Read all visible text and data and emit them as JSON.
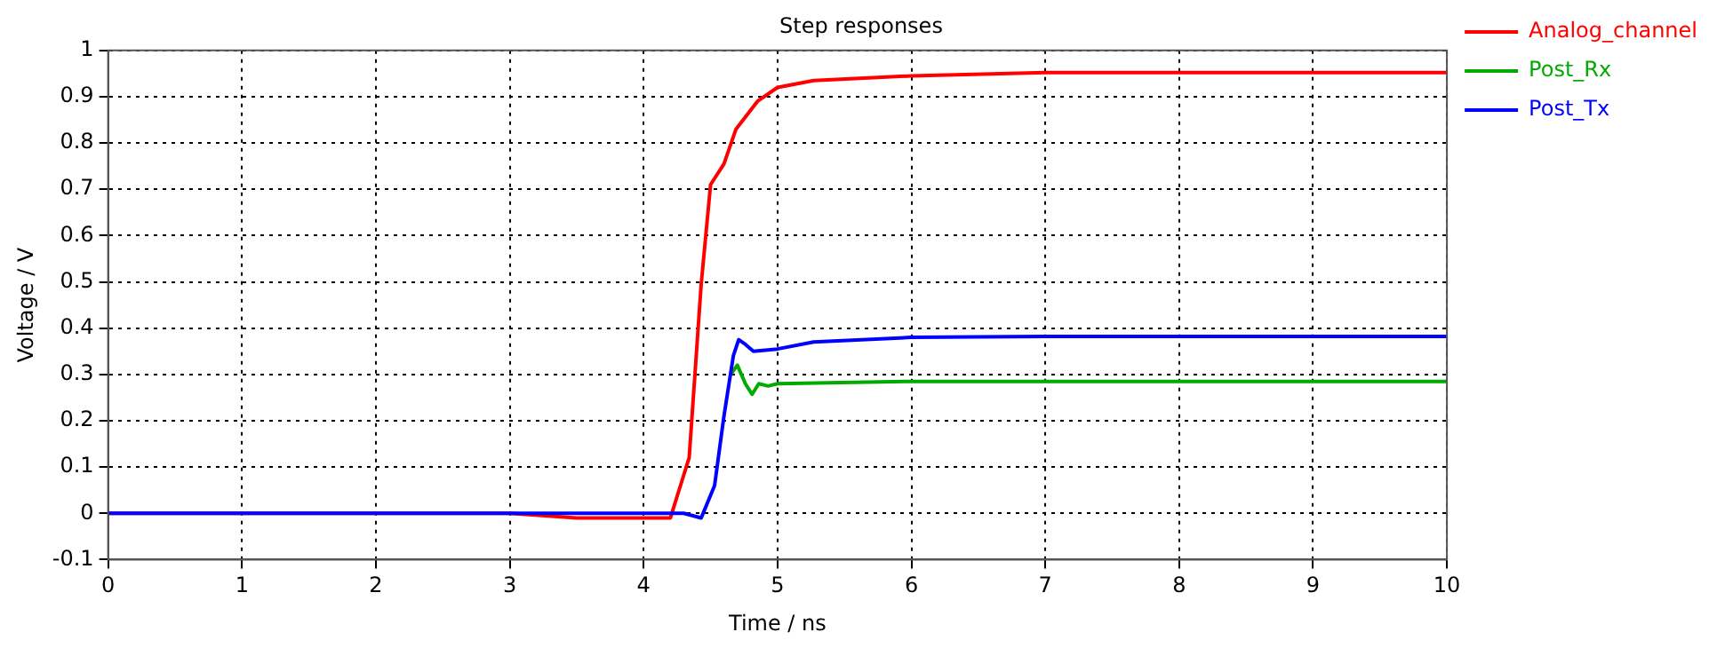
{
  "chart_data": {
    "type": "line",
    "title": "Step responses",
    "xlabel": "Time / ns",
    "ylabel": "Voltage / V",
    "xlim": [
      0,
      10
    ],
    "xticks": [
      0,
      1,
      2,
      3,
      4,
      5,
      6,
      7,
      8,
      9,
      10
    ],
    "ylim": [
      -0.1,
      1
    ],
    "yticks": [
      -0.1,
      0,
      0.1,
      0.2,
      0.3,
      0.4,
      0.5,
      0.6,
      0.7,
      0.8,
      0.9,
      1
    ],
    "grid": true,
    "legend": "right",
    "marker": "none",
    "line_style": "solid",
    "series": [
      {
        "name": "Analog_channel",
        "color": "#ff0000",
        "x": [
          0,
          3,
          3.5,
          4.2,
          4.34,
          4.43,
          4.5,
          4.6,
          4.69,
          4.85,
          5,
          5.27,
          6,
          7,
          10
        ],
        "values": [
          0,
          0,
          -0.01,
          -0.01,
          0.12,
          0.495,
          0.71,
          0.755,
          0.83,
          0.89,
          0.92,
          0.935,
          0.945,
          0.952,
          0.952
        ]
      },
      {
        "name": "Post_Rx",
        "color": "#00aa00",
        "x": [
          4.65,
          4.7,
          4.76,
          4.81,
          4.86,
          4.93,
          5,
          6,
          7,
          10
        ],
        "values": [
          0.3,
          0.32,
          0.28,
          0.257,
          0.28,
          0.275,
          0.28,
          0.285,
          0.285,
          0.285
        ]
      },
      {
        "name": "Post_Tx",
        "color": "#0000ff",
        "x": [
          0,
          3,
          4.3,
          4.43,
          4.53,
          4.6,
          4.67,
          4.71,
          4.76,
          4.82,
          5,
          5.27,
          6,
          7,
          10
        ],
        "values": [
          0,
          0,
          0,
          -0.01,
          0.06,
          0.21,
          0.34,
          0.375,
          0.365,
          0.35,
          0.355,
          0.37,
          0.38,
          0.382,
          0.382
        ]
      }
    ]
  }
}
